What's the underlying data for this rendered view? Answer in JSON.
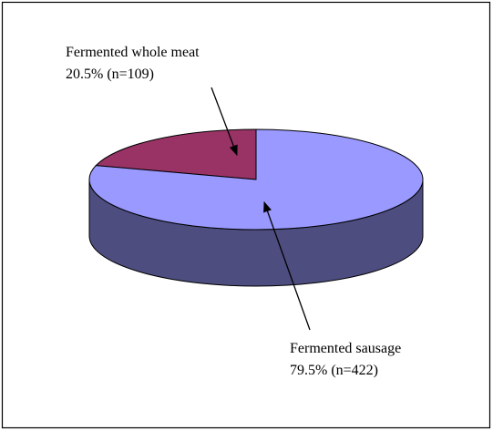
{
  "chart_data": {
    "type": "pie",
    "categories": [
      "Fermented whole meat",
      "Fermented sausage"
    ],
    "values": [
      20.5,
      79.5
    ],
    "value_labels": [
      "20.5% (n=109)",
      "79.5% (n=422)"
    ],
    "colors": [
      "#993366",
      "#9999ff"
    ]
  }
}
